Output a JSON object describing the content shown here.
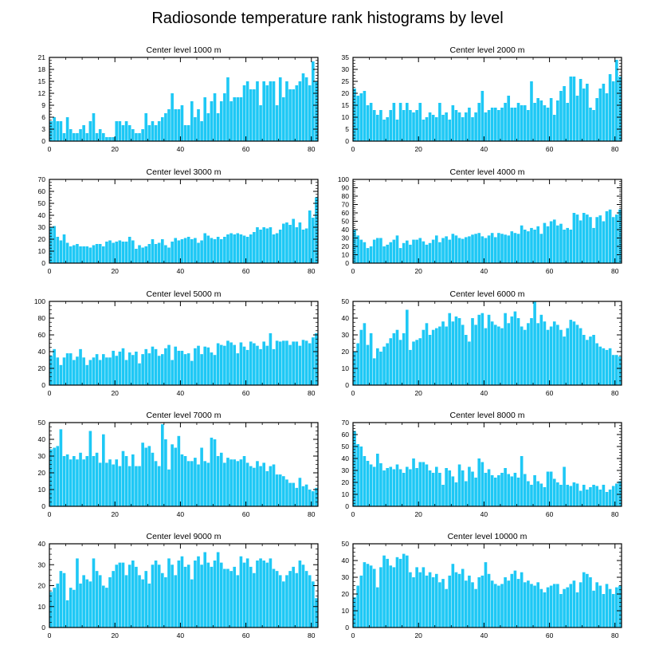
{
  "title": "Radiosonde temperature rank histograms by level",
  "colors": {
    "bar": "#1ec8f5",
    "bar_edge": "#0fb8e8",
    "axis": "#000000",
    "background": "#ffffff"
  },
  "chart_data": [
    {
      "type": "bar",
      "title": "Center level 1000 m",
      "x_start": 0,
      "xlim": [
        0,
        82
      ],
      "ylim": [
        0,
        21
      ],
      "xticks": [
        0,
        20,
        40,
        60,
        80
      ],
      "yticks": [
        0,
        3,
        6,
        9,
        12,
        15,
        18,
        21
      ],
      "values": [
        5,
        6,
        5,
        5,
        2,
        6,
        3,
        2,
        2,
        3,
        4,
        2,
        5,
        7,
        2,
        3,
        2,
        1,
        1,
        1,
        5,
        5,
        4,
        5,
        4,
        3,
        2,
        2,
        3,
        7,
        4,
        5,
        4,
        5,
        6,
        7,
        8,
        12,
        8,
        8,
        9,
        4,
        4,
        10,
        6,
        8,
        5,
        11,
        7,
        10,
        12,
        7,
        10,
        12,
        16,
        10,
        11,
        11,
        11,
        14,
        15,
        13,
        13,
        15,
        9,
        15,
        14,
        15,
        15,
        9,
        16,
        11,
        15,
        13,
        13,
        14,
        15,
        17,
        16,
        14,
        20,
        15
      ]
    },
    {
      "type": "bar",
      "title": "Center level 2000 m",
      "x_start": 0,
      "xlim": [
        0,
        82
      ],
      "ylim": [
        0,
        35
      ],
      "xticks": [
        0,
        20,
        40,
        60,
        80
      ],
      "yticks": [
        0,
        5,
        10,
        15,
        20,
        25,
        30,
        35
      ],
      "values": [
        22,
        19,
        20,
        21,
        15,
        16,
        13,
        11,
        13,
        9,
        10,
        13,
        16,
        9,
        16,
        13,
        16,
        13,
        12,
        13,
        16,
        9,
        10,
        12,
        11,
        10,
        16,
        11,
        12,
        9,
        15,
        13,
        12,
        10,
        12,
        14,
        10,
        12,
        16,
        21,
        12,
        13,
        14,
        14,
        13,
        14,
        16,
        19,
        14,
        14,
        16,
        15,
        15,
        13,
        25,
        16,
        18,
        17,
        15,
        14,
        18,
        11,
        17,
        21,
        23,
        16,
        27,
        27,
        19,
        26,
        22,
        24,
        14,
        13,
        18,
        22,
        24,
        20,
        28,
        25,
        34,
        27
      ]
    },
    {
      "type": "bar",
      "title": "Center level 3000 m",
      "x_start": 0,
      "xlim": [
        0,
        82
      ],
      "ylim": [
        0,
        70
      ],
      "xticks": [
        0,
        20,
        40,
        60,
        80
      ],
      "yticks": [
        0,
        10,
        20,
        30,
        40,
        50,
        60,
        70
      ],
      "values": [
        30,
        31,
        22,
        19,
        24,
        17,
        14,
        15,
        16,
        14,
        14,
        14,
        13,
        15,
        16,
        16,
        14,
        18,
        19,
        17,
        18,
        19,
        18,
        18,
        22,
        19,
        12,
        15,
        13,
        14,
        16,
        20,
        16,
        17,
        20,
        15,
        13,
        18,
        21,
        19,
        20,
        21,
        22,
        20,
        21,
        17,
        19,
        25,
        23,
        21,
        20,
        22,
        20,
        22,
        24,
        25,
        24,
        25,
        24,
        23,
        22,
        24,
        26,
        30,
        28,
        30,
        29,
        30,
        24,
        25,
        28,
        33,
        34,
        32,
        37,
        30,
        34,
        28,
        29,
        44,
        38,
        55
      ]
    },
    {
      "type": "bar",
      "title": "Center level 4000 m",
      "x_start": 0,
      "xlim": [
        0,
        82
      ],
      "ylim": [
        0,
        100
      ],
      "xticks": [
        0,
        20,
        40,
        60,
        80
      ],
      "yticks": [
        0,
        10,
        20,
        30,
        40,
        50,
        60,
        70,
        80,
        90,
        100
      ],
      "values": [
        40,
        33,
        28,
        25,
        18,
        20,
        28,
        30,
        30,
        20,
        22,
        25,
        28,
        33,
        18,
        24,
        27,
        22,
        28,
        28,
        30,
        26,
        22,
        24,
        28,
        33,
        25,
        30,
        32,
        28,
        35,
        33,
        30,
        29,
        31,
        32,
        34,
        35,
        36,
        32,
        30,
        33,
        36,
        31,
        36,
        35,
        34,
        33,
        38,
        36,
        35,
        45,
        40,
        38,
        42,
        40,
        44,
        35,
        48,
        44,
        50,
        52,
        45,
        47,
        40,
        42,
        40,
        60,
        58,
        51,
        60,
        58,
        55,
        42,
        55,
        57,
        50,
        62,
        64,
        55,
        58,
        64
      ]
    },
    {
      "type": "bar",
      "title": "Center level 5000 m",
      "x_start": 0,
      "xlim": [
        0,
        82
      ],
      "ylim": [
        0,
        100
      ],
      "xticks": [
        0,
        20,
        40,
        60,
        80
      ],
      "yticks": [
        0,
        20,
        40,
        60,
        80,
        100
      ],
      "values": [
        35,
        43,
        33,
        24,
        33,
        38,
        38,
        30,
        34,
        43,
        33,
        24,
        30,
        33,
        37,
        30,
        37,
        33,
        33,
        41,
        35,
        40,
        44,
        30,
        39,
        36,
        40,
        26,
        37,
        43,
        38,
        46,
        43,
        35,
        37,
        44,
        48,
        30,
        46,
        41,
        41,
        37,
        38,
        29,
        44,
        47,
        37,
        46,
        45,
        39,
        36,
        50,
        48,
        47,
        53,
        51,
        48,
        38,
        51,
        46,
        42,
        52,
        50,
        47,
        43,
        52,
        47,
        62,
        43,
        53,
        52,
        53,
        53,
        48,
        52,
        52,
        47,
        54,
        53,
        50,
        57,
        62
      ]
    },
    {
      "type": "bar",
      "title": "Center level 6000 m",
      "x_start": 0,
      "xlim": [
        0,
        82
      ],
      "ylim": [
        0,
        50
      ],
      "xticks": [
        0,
        20,
        40,
        60,
        80
      ],
      "yticks": [
        0,
        10,
        20,
        30,
        40,
        50
      ],
      "values": [
        20,
        25,
        33,
        37,
        24,
        31,
        16,
        22,
        20,
        23,
        25,
        28,
        31,
        33,
        27,
        31,
        45,
        21,
        26,
        27,
        28,
        33,
        37,
        30,
        33,
        34,
        35,
        38,
        35,
        43,
        38,
        41,
        40,
        36,
        30,
        26,
        40,
        36,
        42,
        43,
        34,
        42,
        38,
        36,
        35,
        34,
        43,
        37,
        41,
        44,
        40,
        35,
        33,
        37,
        40,
        50,
        37,
        42,
        38,
        33,
        35,
        38,
        36,
        33,
        29,
        34,
        39,
        38,
        36,
        34,
        30,
        27,
        29,
        30,
        25,
        23,
        22,
        21,
        22,
        18,
        18,
        17
      ]
    },
    {
      "type": "bar",
      "title": "Center level 7000 m",
      "x_start": 0,
      "xlim": [
        0,
        82
      ],
      "ylim": [
        0,
        50
      ],
      "xticks": [
        0,
        20,
        40,
        60,
        80
      ],
      "yticks": [
        0,
        10,
        20,
        30,
        40,
        50
      ],
      "values": [
        34,
        35,
        36,
        46,
        30,
        31,
        28,
        30,
        28,
        32,
        28,
        30,
        45,
        30,
        32,
        26,
        43,
        26,
        28,
        25,
        28,
        24,
        33,
        30,
        24,
        31,
        24,
        24,
        38,
        35,
        36,
        32,
        27,
        24,
        49,
        40,
        22,
        37,
        35,
        42,
        31,
        30,
        27,
        27,
        29,
        25,
        35,
        27,
        26,
        41,
        40,
        30,
        32,
        26,
        29,
        28,
        28,
        27,
        28,
        30,
        26,
        24,
        23,
        27,
        24,
        26,
        21,
        24,
        25,
        19,
        19,
        18,
        16,
        14,
        14,
        11,
        17,
        12,
        13,
        10,
        9,
        11
      ]
    },
    {
      "type": "bar",
      "title": "Center level 8000 m",
      "x_start": 0,
      "xlim": [
        0,
        82
      ],
      "ylim": [
        0,
        70
      ],
      "xticks": [
        0,
        20,
        40,
        60,
        80
      ],
      "yticks": [
        0,
        10,
        20,
        30,
        40,
        50,
        60,
        70
      ],
      "values": [
        63,
        52,
        50,
        42,
        38,
        35,
        33,
        44,
        36,
        30,
        32,
        33,
        31,
        35,
        31,
        28,
        33,
        31,
        40,
        32,
        37,
        37,
        35,
        30,
        28,
        33,
        28,
        18,
        32,
        30,
        25,
        20,
        35,
        30,
        21,
        33,
        29,
        24,
        40,
        37,
        28,
        31,
        26,
        24,
        26,
        28,
        32,
        27,
        25,
        28,
        24,
        42,
        27,
        21,
        18,
        26,
        21,
        19,
        16,
        29,
        29,
        23,
        20,
        18,
        33,
        18,
        17,
        20,
        19,
        13,
        18,
        14,
        16,
        18,
        17,
        14,
        18,
        12,
        14,
        17,
        19,
        21
      ]
    },
    {
      "type": "bar",
      "title": "Center level 9000 m",
      "x_start": 0,
      "xlim": [
        0,
        82
      ],
      "ylim": [
        0,
        40
      ],
      "xticks": [
        0,
        20,
        40,
        60,
        80
      ],
      "yticks": [
        0,
        10,
        20,
        30,
        40
      ],
      "values": [
        17,
        19,
        21,
        27,
        26,
        13,
        19,
        18,
        33,
        21,
        25,
        23,
        22,
        33,
        27,
        25,
        20,
        19,
        24,
        27,
        30,
        31,
        31,
        25,
        30,
        32,
        29,
        25,
        23,
        27,
        21,
        30,
        32,
        30,
        26,
        24,
        33,
        30,
        25,
        32,
        34,
        29,
        30,
        23,
        32,
        34,
        30,
        36,
        31,
        29,
        32,
        36,
        31,
        28,
        28,
        27,
        29,
        25,
        34,
        31,
        33,
        29,
        26,
        32,
        33,
        32,
        31,
        33,
        28,
        27,
        25,
        22,
        25,
        27,
        29,
        26,
        32,
        30,
        27,
        25,
        22,
        14
      ]
    },
    {
      "type": "bar",
      "title": "Center level 10000 m",
      "x_start": 0,
      "xlim": [
        0,
        82
      ],
      "ylim": [
        0,
        50
      ],
      "xticks": [
        0,
        20,
        40,
        60,
        80
      ],
      "yticks": [
        0,
        10,
        20,
        30,
        40,
        50
      ],
      "values": [
        18,
        25,
        31,
        39,
        38,
        37,
        35,
        24,
        36,
        43,
        41,
        37,
        36,
        42,
        41,
        44,
        43,
        33,
        30,
        36,
        33,
        36,
        31,
        33,
        30,
        32,
        27,
        29,
        23,
        31,
        38,
        33,
        32,
        35,
        28,
        31,
        27,
        23,
        30,
        31,
        39,
        32,
        28,
        26,
        25,
        26,
        30,
        28,
        32,
        34,
        29,
        33,
        27,
        28,
        26,
        25,
        27,
        23,
        21,
        24,
        25,
        26,
        26,
        20,
        23,
        24,
        26,
        28,
        21,
        27,
        33,
        32,
        30,
        22,
        27,
        25,
        20,
        26,
        23,
        20,
        24,
        25
      ]
    }
  ]
}
